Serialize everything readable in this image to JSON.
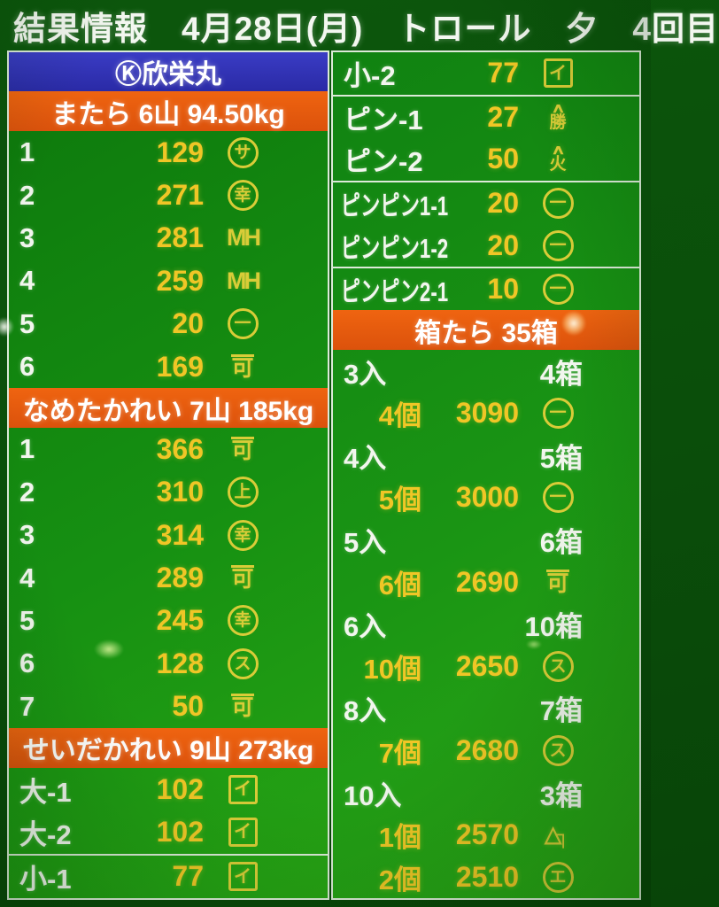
{
  "header": {
    "title": "結果情報　4月28日(月)　トロール　夕　4回目"
  },
  "colors": {
    "panel_green": "#169012",
    "header_orange": "#e65c0e",
    "header_blue": "#3232b4",
    "value_yellow": "#f0c626",
    "mark_yellow": "#d9cc38",
    "text_white": "#f2f6ee"
  },
  "left_panel": {
    "boat_name": "Ⓚ欣栄丸",
    "sections": [
      {
        "title": "またら 6山 94.50kg",
        "rows": [
          {
            "label": "1",
            "value": "129",
            "mark_type": "circle",
            "mark_char": "サ"
          },
          {
            "label": "2",
            "value": "271",
            "mark_type": "circle",
            "mark_char": "幸"
          },
          {
            "label": "3",
            "value": "281",
            "mark_type": "plain",
            "mark_char": "MH"
          },
          {
            "label": "4",
            "value": "259",
            "mark_type": "plain",
            "mark_char": "MH"
          },
          {
            "label": "5",
            "value": "20",
            "mark_type": "circle",
            "mark_char": "一"
          },
          {
            "label": "6",
            "value": "169",
            "mark_type": "overline",
            "mark_char": "可"
          }
        ]
      },
      {
        "title": "なめたかれい 7山 185kg",
        "rows": [
          {
            "label": "1",
            "value": "366",
            "mark_type": "overline",
            "mark_char": "可"
          },
          {
            "label": "2",
            "value": "310",
            "mark_type": "circle",
            "mark_char": "上"
          },
          {
            "label": "3",
            "value": "314",
            "mark_type": "circle",
            "mark_char": "幸"
          },
          {
            "label": "4",
            "value": "289",
            "mark_type": "overline",
            "mark_char": "可"
          },
          {
            "label": "5",
            "value": "245",
            "mark_type": "circle",
            "mark_char": "幸"
          },
          {
            "label": "6",
            "value": "128",
            "mark_type": "circle",
            "mark_char": "ス"
          },
          {
            "label": "7",
            "value": "50",
            "mark_type": "overline",
            "mark_char": "可"
          }
        ]
      },
      {
        "title": "せいだかれい 9山 273kg",
        "rows": [
          {
            "label": "大-1",
            "value": "102",
            "mark_type": "box",
            "mark_char": "イ"
          },
          {
            "label": "大-2",
            "value": "102",
            "mark_type": "box",
            "mark_char": "イ"
          },
          {
            "label": "小-1",
            "value": "77",
            "mark_type": "box",
            "mark_char": "イ"
          }
        ]
      }
    ]
  },
  "right_panel": {
    "rows": [
      {
        "label": "小-2",
        "value": "77",
        "mark_type": "box",
        "mark_char": "イ"
      },
      {
        "label": "ピン-1",
        "value": "27",
        "mark_type": "stack",
        "mark_top": "∧",
        "mark_char": "勝"
      },
      {
        "label": "ピン-2",
        "value": "50",
        "mark_type": "stack",
        "mark_top": "∧",
        "mark_char": "火"
      },
      {
        "label": "ピンピン1-1",
        "value": "20",
        "mark_type": "circle",
        "mark_char": "一"
      },
      {
        "label": "ピンピン1-2",
        "value": "20",
        "mark_type": "circle",
        "mark_char": "一"
      },
      {
        "label": "ピンピン2-1",
        "value": "10",
        "mark_type": "circle",
        "mark_char": "一"
      }
    ],
    "hako": {
      "title": "箱たら 35箱",
      "groups": [
        {
          "size": "3入",
          "boxes": "4箱",
          "bids": [
            {
              "count": "4個",
              "price": "3090",
              "mark_type": "circle",
              "mark_char": "一"
            }
          ]
        },
        {
          "size": "4入",
          "boxes": "5箱",
          "bids": [
            {
              "count": "5個",
              "price": "3000",
              "mark_type": "circle",
              "mark_char": "一"
            }
          ]
        },
        {
          "size": "5入",
          "boxes": "6箱",
          "bids": [
            {
              "count": "6個",
              "price": "2690",
              "mark_type": "overline",
              "mark_char": "可"
            }
          ]
        },
        {
          "size": "6入",
          "boxes": "10箱",
          "bids": [
            {
              "count": "10個",
              "price": "2650",
              "mark_type": "circle",
              "mark_char": "ス"
            }
          ]
        },
        {
          "size": "8入",
          "boxes": "7箱",
          "bids": [
            {
              "count": "7個",
              "price": "2680",
              "mark_type": "circle",
              "mark_char": "ス"
            }
          ]
        },
        {
          "size": "10入",
          "boxes": "3箱",
          "bids": [
            {
              "count": "1個",
              "price": "2570",
              "mark_type": "tri",
              "mark_char": "△┐"
            },
            {
              "count": "2個",
              "price": "2510",
              "mark_type": "circle",
              "mark_char": "エ"
            }
          ]
        }
      ]
    }
  }
}
